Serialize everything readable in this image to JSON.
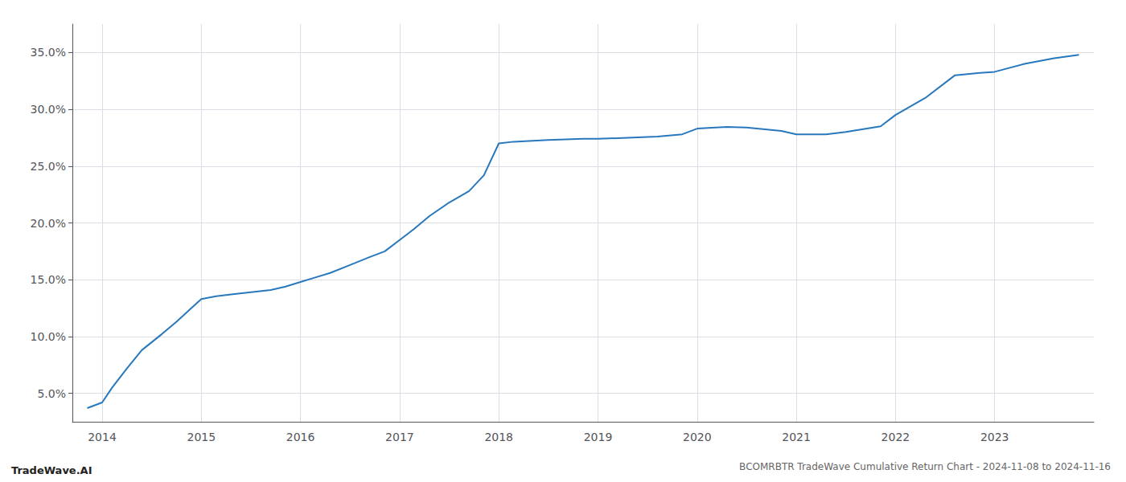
{
  "chart_data": {
    "type": "line",
    "title": "BCOMRBTR TradeWave Cumulative Return Chart - 2024-11-08 to 2024-11-16",
    "annotations": [
      "TradeWave.AI"
    ],
    "color": "#2878bd",
    "x": [
      2013.85,
      2014.0,
      2014.1,
      2014.25,
      2014.4,
      2014.6,
      2014.75,
      2014.9,
      2015.0,
      2015.15,
      2015.3,
      2015.5,
      2015.7,
      2015.85,
      2016.0,
      2016.15,
      2016.3,
      2016.5,
      2016.7,
      2016.85,
      2017.0,
      2017.15,
      2017.3,
      2017.5,
      2017.7,
      2017.85,
      2018.0,
      2018.15,
      2018.5,
      2018.85,
      2019.0,
      2019.3,
      2019.6,
      2019.85,
      2020.0,
      2020.3,
      2020.5,
      2020.85,
      2021.0,
      2021.3,
      2021.5,
      2021.85,
      2022.0,
      2022.3,
      2022.6,
      2022.85,
      2023.0,
      2023.3,
      2023.6,
      2023.85
    ],
    "values": [
      3.7,
      4.2,
      5.5,
      7.2,
      8.8,
      10.2,
      11.3,
      12.5,
      13.3,
      13.55,
      13.7,
      13.9,
      14.1,
      14.4,
      14.8,
      15.2,
      15.6,
      16.3,
      17.0,
      17.5,
      18.5,
      19.5,
      20.6,
      21.8,
      22.8,
      24.2,
      27.0,
      27.15,
      27.3,
      27.4,
      27.4,
      27.5,
      27.6,
      27.8,
      28.3,
      28.45,
      28.4,
      28.1,
      27.8,
      27.8,
      28.0,
      28.5,
      29.5,
      31.0,
      33.0,
      33.2,
      33.3,
      34.0,
      34.5,
      34.8
    ],
    "xlim": [
      2013.7,
      2024.0
    ],
    "ylim": [
      2.5,
      37.5
    ],
    "xticks": [
      2014,
      2015,
      2016,
      2017,
      2018,
      2019,
      2020,
      2021,
      2022,
      2023
    ],
    "yticks": [
      {
        "value": 5.0,
        "label": "5.0%"
      },
      {
        "value": 10.0,
        "label": "10.0%"
      },
      {
        "value": 15.0,
        "label": "15.0%"
      },
      {
        "value": 20.0,
        "label": "20.0%"
      },
      {
        "value": 25.0,
        "label": "25.0%"
      },
      {
        "value": 30.0,
        "label": "30.0%"
      },
      {
        "value": 35.0,
        "label": "35.0%"
      }
    ],
    "grid": true
  }
}
